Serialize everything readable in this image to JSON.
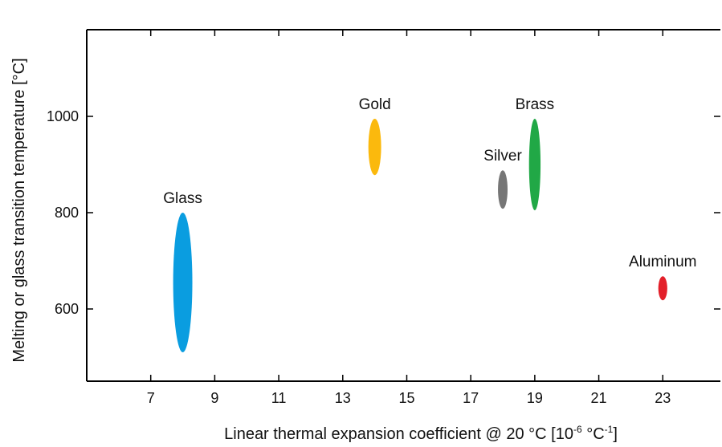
{
  "chart_data": {
    "type": "scatter",
    "title": "",
    "xlabel": "Linear thermal expansion coefficient @ 20 °C [10",
    "xlabel_exp1": "-6",
    "xlabel_mid": " °C",
    "xlabel_exp2": "-1",
    "xlabel_end": "]",
    "ylabel": "Melting or glass transition temperature [°C]",
    "xlim": [
      5,
      24.8
    ],
    "ylim": [
      450,
      1180
    ],
    "xticks": [
      7,
      9,
      11,
      13,
      15,
      17,
      19,
      21,
      23
    ],
    "yticks": [
      600,
      800,
      1000
    ],
    "grid": false,
    "legend": "none",
    "points": [
      {
        "label": "Glass",
        "x": 8,
        "y_min": 510,
        "y_max": 800,
        "x_spread": 0.3,
        "color": "#0a9de0"
      },
      {
        "label": "Gold",
        "x": 14,
        "y_min": 878,
        "y_max": 995,
        "x_spread": 0.2,
        "color": "#fbb90d"
      },
      {
        "label": "Silver",
        "x": 18,
        "y_min": 808,
        "y_max": 888,
        "x_spread": 0.15,
        "color": "#767676"
      },
      {
        "label": "Brass",
        "x": 19,
        "y_min": 805,
        "y_max": 995,
        "x_spread": 0.18,
        "color": "#21a846"
      },
      {
        "label": "Aluminum",
        "x": 23,
        "y_min": 618,
        "y_max": 668,
        "x_spread": 0.14,
        "color": "#e3202a"
      }
    ]
  }
}
